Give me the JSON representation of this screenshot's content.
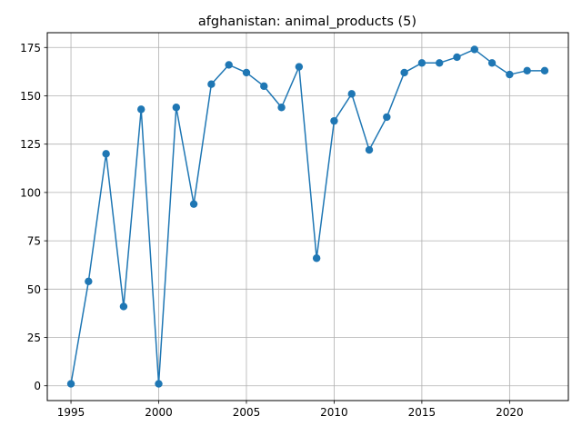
{
  "chart_data": {
    "type": "line",
    "title": "afghanistan: animal_products (5)",
    "xlabel": "",
    "ylabel": "",
    "x": [
      1995,
      1996,
      1997,
      1998,
      1999,
      2000,
      2001,
      2002,
      2003,
      2004,
      2005,
      2006,
      2007,
      2008,
      2009,
      2010,
      2011,
      2012,
      2013,
      2014,
      2015,
      2016,
      2017,
      2018,
      2019,
      2020,
      2021,
      2022
    ],
    "series": [
      {
        "values": [
          1,
          54,
          120,
          41,
          143,
          1,
          144,
          94,
          156,
          166,
          162,
          155,
          144,
          165,
          66,
          137,
          151,
          122,
          139,
          162,
          167,
          167,
          170,
          174,
          167,
          161,
          163,
          163
        ],
        "color": "#1f77b4",
        "marker": "circle"
      }
    ],
    "xlim": [
      1993.65,
      2023.35
    ],
    "ylim": [
      -7.65,
      182.65
    ],
    "xticks": [
      1995,
      2000,
      2005,
      2010,
      2015,
      2020
    ],
    "yticks": [
      0,
      25,
      50,
      75,
      100,
      125,
      150,
      175
    ],
    "grid": true,
    "legend": "none"
  }
}
